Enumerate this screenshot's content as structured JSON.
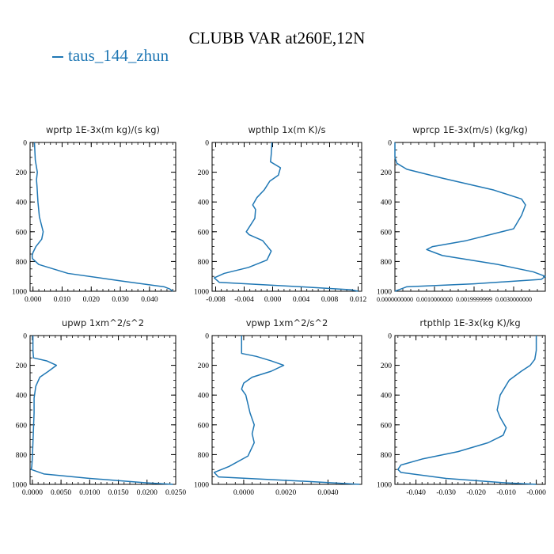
{
  "figure": {
    "title": "CLUBB VAR at260E,12N",
    "legend": {
      "label": "taus_144_zhun",
      "color": "#1f77b4"
    }
  },
  "chart_data": [
    {
      "type": "line",
      "title": "wprtp  1E-3x(m kg)/(s kg)",
      "xlim": [
        -0.001,
        0.049
      ],
      "ylim": [
        0,
        1000
      ],
      "y_inverted": true,
      "xticks": [
        0.0,
        0.01,
        0.02,
        0.03,
        0.04
      ],
      "xtick_labels": [
        "0.000",
        "0.010",
        "0.020",
        "0.030",
        "0.040"
      ],
      "yticks": [
        0,
        200,
        400,
        600,
        800,
        1000
      ],
      "series": [
        {
          "color": "#1f77b4",
          "x": [
            0.0005,
            0.0008,
            0.0015,
            0.0012,
            0.0014,
            0.0017,
            0.0022,
            0.0035,
            0.003,
            0.001,
            0.0,
            -0.0003,
            -0.0002,
            0.002,
            0.012,
            0.03,
            0.045,
            0.047,
            0.048
          ],
          "y": [
            0,
            120,
            200,
            250,
            300,
            400,
            500,
            600,
            650,
            700,
            740,
            760,
            780,
            820,
            880,
            930,
            970,
            985,
            1000
          ]
        }
      ]
    },
    {
      "type": "line",
      "title": "wpthlp  1x(m K)/s",
      "xlim": [
        -0.0085,
        0.0125
      ],
      "ylim": [
        0,
        1000
      ],
      "y_inverted": true,
      "xticks": [
        -0.008,
        -0.004,
        0.0,
        0.004,
        0.008,
        0.012
      ],
      "xtick_labels": [
        "-0.008",
        "-0.004",
        "0.000",
        "0.004",
        "0.008",
        "0.012"
      ],
      "yticks": [
        0,
        200,
        400,
        600,
        800,
        1000
      ],
      "series": [
        {
          "color": "#1f77b4",
          "x": [
            -0.0001,
            -0.0002,
            -0.0003,
            0.0011,
            0.0008,
            -0.0004,
            -0.0012,
            -0.0022,
            -0.0028,
            -0.0024,
            -0.0025,
            -0.0033,
            -0.0037,
            -0.0033,
            -0.0014,
            -0.0002,
            -0.0008,
            -0.0034,
            -0.0068,
            -0.0082,
            -0.0075,
            0.004,
            0.011,
            0.012
          ],
          "y": [
            0,
            80,
            130,
            170,
            220,
            260,
            320,
            370,
            420,
            450,
            510,
            570,
            600,
            620,
            660,
            730,
            790,
            840,
            880,
            910,
            940,
            970,
            990,
            1000
          ]
        }
      ]
    },
    {
      "type": "line",
      "title": "wprcp  1E-3x(m/s) (kg/kg)",
      "xlim": [
        0,
        0.0038
      ],
      "ylim": [
        0,
        1000
      ],
      "y_inverted": true,
      "xticks": [
        0.0,
        0.001,
        0.002,
        0.003
      ],
      "xtick_labels": [
        "0.0000000000",
        "0.0010000000",
        "0.0019999999",
        "0.0030000000"
      ],
      "yticks": [
        0,
        200,
        400,
        600,
        800,
        1000
      ],
      "series": [
        {
          "color": "#1f77b4",
          "x": [
            0.0,
            0.0,
            5e-05,
            0.0003,
            0.0012,
            0.0025,
            0.0032,
            0.0033,
            0.0032,
            0.003,
            0.0018,
            0.00095,
            0.0008,
            0.001,
            0.0012,
            0.0026,
            0.0035,
            0.0038,
            0.0037,
            0.002,
            0.0003,
            0.0
          ],
          "y": [
            0,
            100,
            140,
            180,
            240,
            320,
            380,
            420,
            490,
            580,
            660,
            700,
            720,
            740,
            760,
            820,
            870,
            900,
            920,
            950,
            970,
            1000
          ]
        }
      ]
    },
    {
      "type": "line",
      "title": "upwp  1xm^2/s^2",
      "xlim": [
        -0.0004,
        0.025
      ],
      "ylim": [
        0,
        1000
      ],
      "y_inverted": true,
      "xticks": [
        0.0,
        0.005,
        0.01,
        0.015,
        0.02,
        0.025
      ],
      "xtick_labels": [
        "0.0000",
        "0.0050",
        "0.0100",
        "0.0150",
        "0.0200",
        "0.0250"
      ],
      "yticks": [
        0,
        200,
        400,
        600,
        800,
        1000
      ],
      "series": [
        {
          "color": "#1f77b4",
          "x": [
            0.0001,
            0.0001,
            0.0002,
            0.0025,
            0.0042,
            0.0028,
            0.0013,
            0.0006,
            0.0003,
            0.0003,
            0.0002,
            0.0001,
            0.0,
            -0.0001,
            -0.0002,
            0.002,
            0.01,
            0.02,
            0.0245
          ],
          "y": [
            0,
            100,
            150,
            170,
            200,
            240,
            280,
            340,
            420,
            520,
            620,
            720,
            820,
            880,
            900,
            930,
            960,
            990,
            1000
          ]
        }
      ]
    },
    {
      "type": "line",
      "title": "vpwp  1xm^2/s^2",
      "xlim": [
        -0.0015,
        0.0056
      ],
      "ylim": [
        0,
        1000
      ],
      "y_inverted": true,
      "xticks": [
        0.0,
        0.002,
        0.004
      ],
      "xtick_labels": [
        "0.0000",
        "0.0020",
        "0.0040"
      ],
      "yticks": [
        0,
        200,
        400,
        600,
        800,
        1000
      ],
      "series": [
        {
          "color": "#1f77b4",
          "x": [
            -0.0001,
            -0.0001,
            -0.0001,
            0.0006,
            0.0013,
            0.0019,
            0.0013,
            0.0004,
            0.0,
            -0.0001,
            0.0001,
            0.0002,
            0.0003,
            0.0005,
            0.0004,
            0.0005,
            0.0002,
            -0.0007,
            -0.0014,
            -0.0012,
            0.003,
            0.0055
          ],
          "y": [
            0,
            80,
            120,
            140,
            170,
            200,
            240,
            280,
            320,
            360,
            400,
            460,
            520,
            600,
            660,
            720,
            810,
            880,
            920,
            950,
            980,
            1000
          ]
        }
      ]
    },
    {
      "type": "line",
      "title": "rtpthlp  1E-3x(kg K)/kg",
      "xlim": [
        -0.047,
        0.003
      ],
      "ylim": [
        0,
        1000
      ],
      "y_inverted": true,
      "xticks": [
        -0.04,
        -0.03,
        -0.02,
        -0.01,
        0.0
      ],
      "xtick_labels": [
        "-0.040",
        "-0.030",
        "-0.020",
        "-0.010",
        "-0.000"
      ],
      "yticks": [
        0,
        200,
        400,
        600,
        800,
        1000
      ],
      "series": [
        {
          "color": "#1f77b4",
          "x": [
            0.0,
            0.0,
            -0.0005,
            -0.002,
            -0.005,
            -0.009,
            -0.012,
            -0.013,
            -0.012,
            -0.01,
            -0.011,
            -0.016,
            -0.026,
            -0.038,
            -0.045,
            -0.046,
            -0.045,
            -0.03,
            -0.01,
            0.0
          ],
          "y": [
            0,
            100,
            160,
            200,
            240,
            300,
            400,
            500,
            550,
            620,
            670,
            720,
            780,
            830,
            870,
            900,
            920,
            960,
            990,
            1000
          ]
        }
      ]
    }
  ]
}
